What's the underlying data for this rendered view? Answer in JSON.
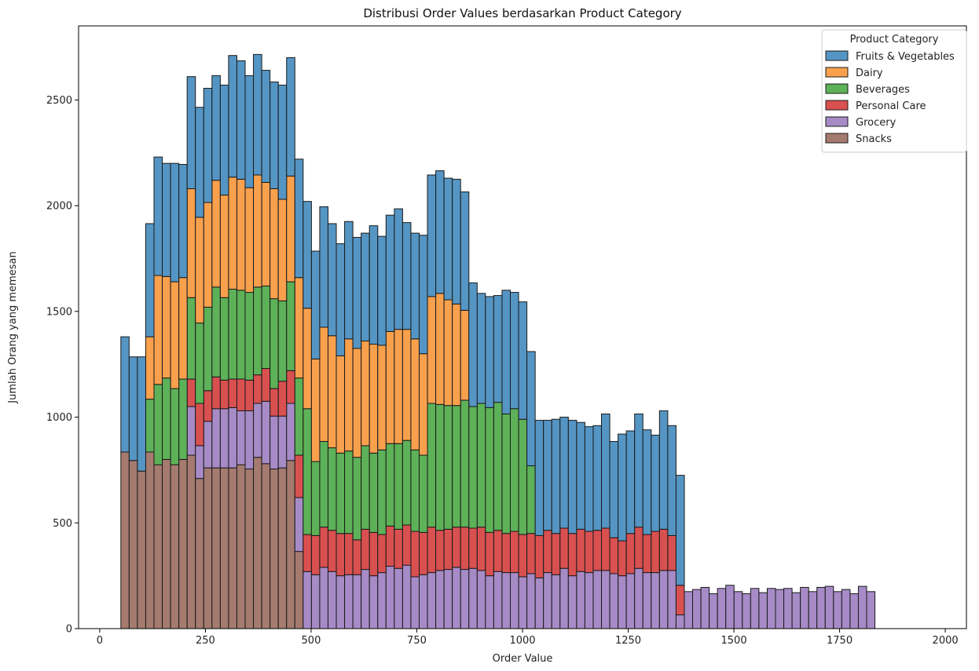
{
  "chart_data": {
    "type": "bar",
    "subtype": "stacked-histogram",
    "title": "Distribusi Order Values berdasarkan Product Category",
    "xlabel": "Order Value",
    "ylabel": "Jumlah Orang yang memesan",
    "xlim": [
      -50,
      2050
    ],
    "ylim": [
      0,
      2850
    ],
    "xticks": [
      0,
      250,
      500,
      750,
      1000,
      1250,
      1500,
      1750,
      2000
    ],
    "yticks": [
      0,
      500,
      1000,
      1500,
      2000,
      2500
    ],
    "bin_width": 19.6,
    "bin_start": 50,
    "legend": {
      "title": "Product Category",
      "placement": "upper right"
    },
    "series": [
      {
        "name": "Snacks",
        "color": "#a57a6f",
        "values": [
          835,
          795,
          745,
          835,
          775,
          800,
          775,
          800,
          820,
          710,
          760,
          760,
          760,
          760,
          775,
          755,
          810,
          780,
          755,
          760,
          795,
          365
        ]
      },
      {
        "name": "Grocery",
        "color": "#a68bc6",
        "values": [
          0,
          0,
          0,
          0,
          0,
          0,
          0,
          0,
          230,
          155,
          220,
          280,
          280,
          285,
          255,
          275,
          255,
          295,
          250,
          245,
          270,
          255,
          270,
          255,
          290,
          270,
          250,
          255,
          255,
          280,
          250,
          265,
          295,
          285,
          300,
          245,
          255,
          265,
          275,
          280,
          290,
          280,
          285,
          275,
          250,
          270,
          265,
          265,
          245,
          260,
          240,
          265,
          255,
          285,
          250,
          270,
          265,
          275,
          275,
          260,
          250,
          260,
          285,
          265,
          265,
          275,
          275,
          65,
          175,
          185,
          195,
          165,
          190,
          205,
          175,
          165,
          190,
          170,
          190,
          185,
          190,
          170,
          195,
          175,
          195,
          200,
          175,
          185,
          165,
          200,
          175
        ]
      },
      {
        "name": "Personal Care",
        "color": "#d95050",
        "values": [
          0,
          0,
          0,
          0,
          0,
          0,
          0,
          0,
          130,
          200,
          145,
          150,
          135,
          135,
          150,
          145,
          135,
          155,
          130,
          165,
          155,
          200,
          175,
          185,
          190,
          195,
          200,
          195,
          165,
          190,
          205,
          180,
          190,
          185,
          190,
          215,
          200,
          215,
          190,
          190,
          190,
          200,
          190,
          205,
          205,
          195,
          185,
          195,
          200,
          190,
          200,
          200,
          195,
          190,
          200,
          200,
          195,
          190,
          200,
          170,
          165,
          190,
          195,
          180,
          195,
          195,
          165,
          140
        ]
      },
      {
        "name": "Beverages",
        "color": "#5db158",
        "values": [
          0,
          0,
          0,
          250,
          380,
          385,
          360,
          380,
          385,
          380,
          395,
          425,
          390,
          425,
          420,
          415,
          415,
          390,
          425,
          380,
          420,
          365,
          595,
          350,
          405,
          390,
          380,
          390,
          390,
          395,
          375,
          400,
          390,
          405,
          400,
          385,
          365,
          585,
          595,
          585,
          575,
          600,
          575,
          585,
          590,
          605,
          565,
          580,
          545,
          320
        ]
      },
      {
        "name": "Dairy",
        "color": "#f9a04d",
        "values": [
          0,
          0,
          0,
          295,
          515,
          480,
          505,
          480,
          515,
          500,
          495,
          505,
          485,
          530,
          525,
          495,
          530,
          490,
          520,
          480,
          500,
          475,
          475,
          485,
          540,
          530,
          460,
          530,
          515,
          495,
          515,
          495,
          530,
          540,
          525,
          525,
          480,
          505,
          525,
          500,
          480,
          425
        ]
      },
      {
        "name": "Fruits & Vegetables",
        "color": "#5595c3",
        "values": [
          545,
          490,
          540,
          535,
          560,
          535,
          560,
          535,
          530,
          520,
          540,
          495,
          520,
          575,
          560,
          530,
          570,
          530,
          505,
          540,
          560,
          560,
          505,
          510,
          570,
          530,
          530,
          555,
          525,
          510,
          560,
          515,
          550,
          570,
          505,
          500,
          560,
          575,
          580,
          575,
          590,
          560,
          585,
          520,
          525,
          505,
          585,
          550,
          555,
          540,
          545,
          520,
          540,
          525,
          535,
          505,
          495,
          495,
          540,
          455,
          505,
          485,
          535,
          495,
          455,
          560,
          520,
          520
        ]
      }
    ]
  }
}
